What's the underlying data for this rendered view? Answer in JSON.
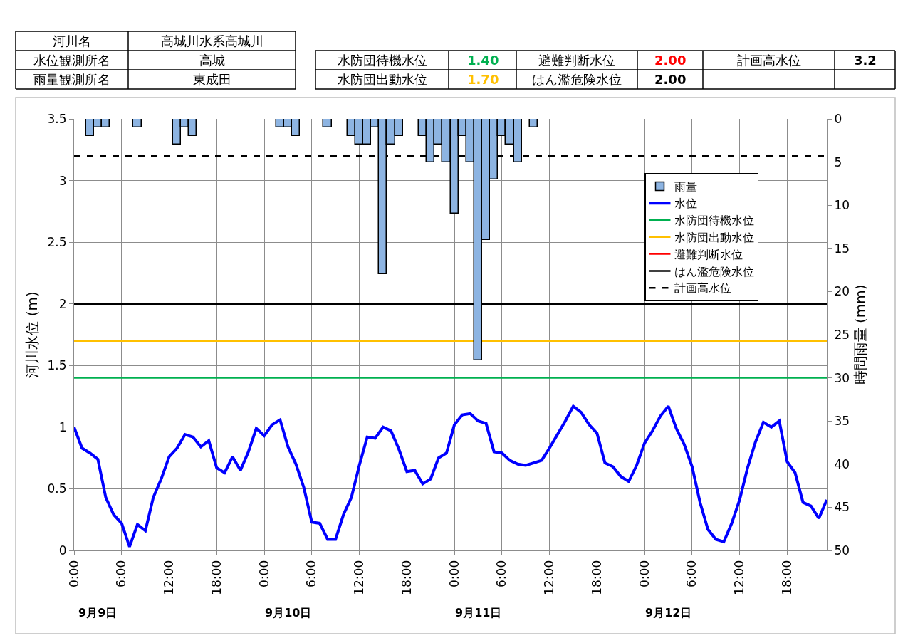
{
  "chart_data": {
    "type": "bar",
    "x": [
      "--09-09T00:00",
      "--09-09T01:00",
      "--09-09T02:00",
      "--09-09T03:00",
      "--09-09T04:00",
      "--09-09T05:00",
      "--09-09T06:00",
      "--09-09T07:00",
      "--09-09T08:00",
      "--09-09T09:00",
      "--09-09T10:00",
      "--09-09T11:00",
      "--09-09T12:00",
      "--09-09T13:00",
      "--09-09T14:00",
      "--09-09T15:00",
      "--09-09T16:00",
      "--09-09T17:00",
      "--09-09T18:00",
      "--09-09T19:00",
      "--09-09T20:00",
      "--09-09T21:00",
      "--09-09T22:00",
      "--09-09T23:00",
      "--09-10T00:00",
      "--09-10T01:00",
      "--09-10T02:00",
      "--09-10T03:00",
      "--09-10T04:00",
      "--09-10T05:00",
      "--09-10T06:00",
      "--09-10T07:00",
      "--09-10T08:00",
      "--09-10T09:00",
      "--09-10T10:00",
      "--09-10T11:00",
      "--09-10T12:00",
      "--09-10T13:00",
      "--09-10T14:00",
      "--09-10T15:00",
      "--09-10T16:00",
      "--09-10T17:00",
      "--09-10T18:00",
      "--09-10T19:00",
      "--09-10T20:00",
      "--09-10T21:00",
      "--09-10T22:00",
      "--09-10T23:00",
      "--09-11T00:00",
      "--09-11T01:00",
      "--09-11T02:00",
      "--09-11T03:00",
      "--09-11T04:00",
      "--09-11T05:00",
      "--09-11T06:00",
      "--09-11T07:00",
      "--09-11T08:00",
      "--09-11T09:00",
      "--09-11T10:00",
      "--09-11T11:00",
      "--09-11T12:00",
      "--09-11T13:00",
      "--09-11T14:00",
      "--09-11T15:00",
      "--09-11T16:00",
      "--09-11T17:00",
      "--09-11T18:00",
      "--09-11T19:00",
      "--09-11T20:00",
      "--09-11T21:00",
      "--09-11T22:00",
      "--09-11T23:00",
      "--09-12T00:00",
      "--09-12T01:00",
      "--09-12T02:00",
      "--09-12T03:00",
      "--09-12T04:00",
      "--09-12T05:00",
      "--09-12T06:00",
      "--09-12T07:00",
      "--09-12T08:00",
      "--09-12T09:00",
      "--09-12T10:00",
      "--09-12T11:00",
      "--09-12T12:00",
      "--09-12T13:00",
      "--09-12T14:00",
      "--09-12T15:00",
      "--09-12T16:00",
      "--09-12T17:00",
      "--09-12T18:00",
      "--09-12T19:00",
      "--09-12T20:00",
      "--09-12T21:00",
      "--09-12T22:00",
      "--09-12T23:00"
    ],
    "series": [
      {
        "name": "雨量",
        "axis": "y2",
        "color": "#8db4e2",
        "values": [
          null,
          null,
          2,
          1,
          1,
          null,
          null,
          null,
          1,
          null,
          null,
          null,
          null,
          3,
          1,
          2,
          null,
          null,
          null,
          null,
          null,
          null,
          null,
          null,
          null,
          null,
          1,
          1,
          2,
          null,
          null,
          null,
          1,
          null,
          null,
          2,
          3,
          3,
          1,
          18,
          3,
          2,
          null,
          null,
          2,
          5,
          3,
          5,
          11,
          2,
          5,
          28,
          14,
          7,
          2,
          3,
          5,
          null,
          1,
          null,
          null,
          null,
          null,
          null,
          null,
          null,
          null,
          null,
          null,
          null,
          null,
          null,
          null,
          null,
          null,
          null,
          null,
          null,
          null,
          null,
          null,
          null,
          null,
          null,
          null,
          null,
          null,
          null,
          null,
          null,
          null,
          null,
          null,
          null,
          null,
          null
        ]
      },
      {
        "name": "水位",
        "type": "line",
        "color": "#0000ff",
        "values": [
          1.0,
          0.83,
          0.79,
          0.74,
          0.43,
          0.29,
          0.22,
          0.03,
          0.21,
          0.16,
          0.43,
          0.58,
          0.76,
          0.83,
          0.94,
          0.92,
          0.84,
          0.89,
          0.67,
          0.63,
          0.76,
          0.65,
          0.8,
          0.99,
          0.93,
          1.02,
          1.06,
          0.84,
          0.7,
          0.51,
          0.23,
          0.22,
          0.09,
          0.09,
          0.29,
          0.43,
          0.69,
          0.92,
          0.91,
          1.0,
          0.97,
          0.82,
          0.64,
          0.65,
          0.54,
          0.58,
          0.75,
          0.79,
          1.02,
          1.1,
          1.11,
          1.05,
          1.03,
          0.8,
          0.79,
          0.73,
          0.7,
          0.69,
          0.71,
          0.73,
          0.83,
          0.94,
          1.05,
          1.17,
          1.12,
          1.02,
          0.95,
          0.71,
          0.68,
          0.6,
          0.56,
          0.69,
          0.87,
          0.97,
          1.09,
          1.17,
          0.99,
          0.86,
          0.68,
          0.39,
          0.17,
          0.09,
          0.07,
          0.22,
          0.41,
          0.67,
          0.88,
          1.04,
          1.0,
          1.05,
          0.72,
          0.63,
          0.39,
          0.36,
          0.26,
          0.41
        ]
      }
    ],
    "ref_lines": [
      {
        "axis": "y",
        "value": 1.4,
        "label": "水防団待機水位",
        "color": "#00b050",
        "line_style": "solid"
      },
      {
        "axis": "y",
        "value": 1.7,
        "label": "水防団出動水位",
        "color": "#ffc000",
        "line_style": "solid"
      },
      {
        "axis": "y",
        "value": 2.0,
        "label": "避難判断水位",
        "color": "#ff0000",
        "line_style": "solid"
      },
      {
        "axis": "y",
        "value": 2.0,
        "label": "はん濫危険水位",
        "color": "#000000",
        "line_style": "solid"
      },
      {
        "axis": "y",
        "value": 3.2,
        "label": "計画高水位",
        "color": "#000000",
        "line_style": "dashed"
      }
    ],
    "ylabel": "河川水位 (m)",
    "y2label": "時間雨量 (mm)",
    "xlim": [
      "--09-09T00:00",
      "--09-12T23:00"
    ],
    "xticks": [
      {
        "value": "--09-09T00:00",
        "label": "0:00"
      },
      {
        "value": "--09-09T06:00",
        "label": "6:00"
      },
      {
        "value": "--09-09T12:00",
        "label": "12:00"
      },
      {
        "value": "--09-09T18:00",
        "label": "18:00"
      },
      {
        "value": "--09-10T00:00",
        "label": "0:00"
      },
      {
        "value": "--09-10T06:00",
        "label": "6:00"
      },
      {
        "value": "--09-10T12:00",
        "label": "12:00"
      },
      {
        "value": "--09-10T18:00",
        "label": "18:00"
      },
      {
        "value": "--09-11T00:00",
        "label": "0:00"
      },
      {
        "value": "--09-11T06:00",
        "label": "6:00"
      },
      {
        "value": "--09-11T12:00",
        "label": "12:00"
      },
      {
        "value": "--09-11T18:00",
        "label": "18:00"
      },
      {
        "value": "--09-12T00:00",
        "label": "0:00"
      },
      {
        "value": "--09-12T06:00",
        "label": "6:00"
      },
      {
        "value": "--09-12T12:00",
        "label": "12:00"
      },
      {
        "value": "--09-12T18:00",
        "label": "18:00"
      }
    ],
    "ylim": [
      0,
      3.5
    ],
    "yticks": [
      0,
      0.5,
      1,
      1.5,
      2,
      2.5,
      3,
      3.5
    ],
    "y2lim": [
      50,
      0
    ],
    "y2ticks": [
      0,
      5,
      10,
      15,
      20,
      25,
      30,
      35,
      40,
      45,
      50
    ],
    "grid": true,
    "legend": "top right",
    "marker": "none",
    "line_style": "solid",
    "annotations": [
      "河川名",
      "高城川水系高城川",
      "水位観測所名",
      "高城",
      "水防団待機水位",
      "1.40",
      "避難判断水位",
      "2.00",
      "計画高水位",
      "3.2",
      "雨量観測所名",
      "東成田",
      "水防団出動水位",
      "1.70",
      "はん濫危険水位",
      "2.00",
      "9月9日",
      "9月10日",
      "9月11日",
      "9月12日"
    ]
  }
}
